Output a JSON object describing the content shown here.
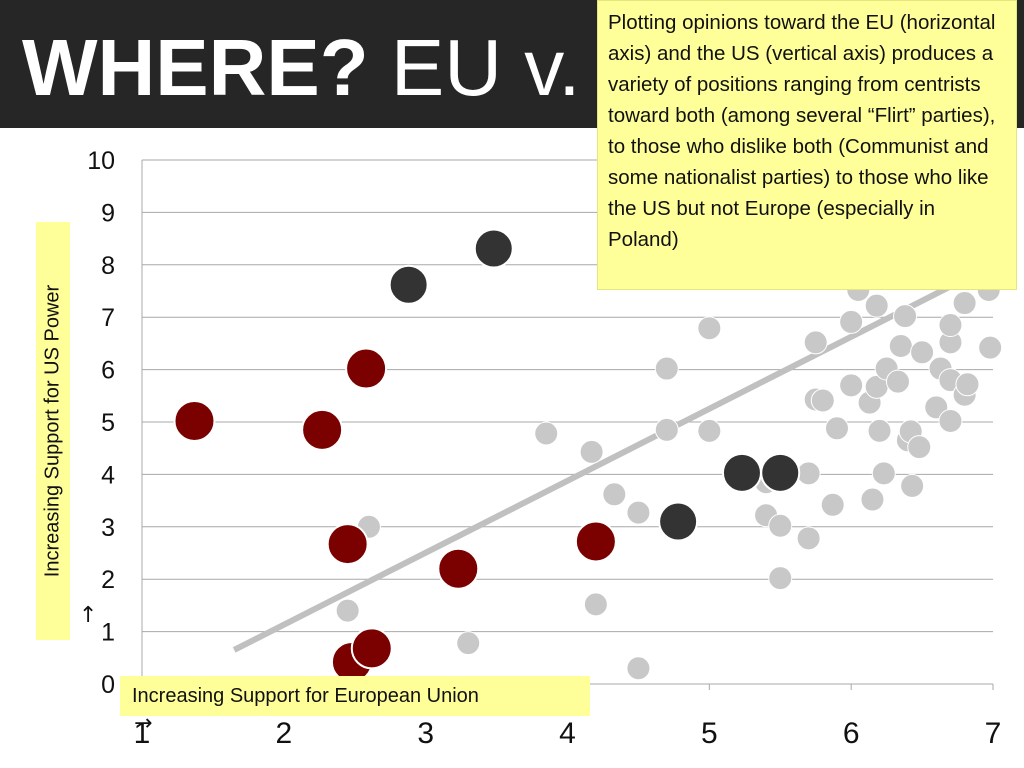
{
  "title": {
    "bold": "WHERE?",
    "light": "EU v."
  },
  "callout": "Plotting opinions toward the EU (horizontal axis) and the US (vertical axis) produces a variety of positions ranging from centrists toward both (among several “Flirt” parties), to those who dislike both (Communist and some nationalist parties) to those who like the US but not Europe (especially in Poland)",
  "colors": {
    "title_bar": "#262626",
    "callout_bg": "#ffff99",
    "highlight": "#7b0000",
    "dark": "#333333",
    "other": "#c8c8c8",
    "trend": "#c0c0c0"
  },
  "chart_data": {
    "type": "scatter",
    "xlabel": "Increasing Support for European Union",
    "ylabel": "Increasing Support for US Power",
    "xlim": [
      1,
      7
    ],
    "ylim": [
      0,
      10
    ],
    "x_ticks": [
      "1",
      "2",
      "3",
      "4",
      "5",
      "6",
      "7"
    ],
    "y_ticks": [
      "0",
      "1",
      "2",
      "3",
      "4",
      "5",
      "6",
      "7",
      "8",
      "9",
      "10"
    ],
    "grid": true,
    "trendline": {
      "x": [
        1.65,
        7.0
      ],
      "y": [
        0.65,
        8.0
      ]
    },
    "series": [
      {
        "group": "other",
        "points": [
          [
            2.45,
            1.4
          ],
          [
            2.6,
            3.0
          ],
          [
            3.3,
            0.78
          ],
          [
            3.85,
            4.78
          ],
          [
            4.17,
            4.43
          ],
          [
            4.2,
            1.52
          ],
          [
            4.33,
            3.62
          ],
          [
            4.5,
            3.27
          ],
          [
            4.5,
            0.3
          ],
          [
            4.7,
            4.85
          ],
          [
            4.7,
            6.02
          ],
          [
            5.0,
            4.83
          ],
          [
            5.0,
            6.79
          ],
          [
            5.4,
            3.85
          ],
          [
            5.4,
            3.22
          ],
          [
            5.5,
            3.02
          ],
          [
            5.5,
            2.02
          ],
          [
            5.7,
            4.02
          ],
          [
            5.7,
            2.78
          ],
          [
            5.75,
            5.43
          ],
          [
            5.75,
            6.52
          ],
          [
            5.8,
            5.41
          ],
          [
            5.87,
            3.42
          ],
          [
            5.9,
            4.88
          ],
          [
            6.0,
            5.7
          ],
          [
            6.0,
            6.91
          ],
          [
            6.05,
            7.52
          ],
          [
            6.13,
            5.37
          ],
          [
            6.15,
            3.52
          ],
          [
            6.18,
            5.67
          ],
          [
            6.18,
            7.22
          ],
          [
            6.2,
            4.83
          ],
          [
            6.23,
            4.02
          ],
          [
            6.25,
            6.02
          ],
          [
            6.33,
            5.77
          ],
          [
            6.35,
            6.45
          ],
          [
            6.38,
            7.02
          ],
          [
            6.4,
            4.65
          ],
          [
            6.42,
            4.82
          ],
          [
            6.43,
            3.78
          ],
          [
            6.48,
            4.52
          ],
          [
            6.5,
            6.33
          ],
          [
            6.6,
            5.28
          ],
          [
            6.63,
            6.02
          ],
          [
            6.7,
            5.02
          ],
          [
            6.7,
            5.8
          ],
          [
            6.7,
            6.52
          ],
          [
            6.7,
            6.85
          ],
          [
            6.8,
            7.27
          ],
          [
            6.8,
            5.52
          ],
          [
            6.82,
            5.72
          ],
          [
            6.97,
            7.52
          ],
          [
            6.98,
            6.42
          ]
        ]
      },
      {
        "group": "dark",
        "points": [
          [
            2.88,
            7.62
          ],
          [
            3.48,
            8.31
          ],
          [
            4.78,
            3.1
          ],
          [
            5.23,
            4.03
          ],
          [
            5.5,
            4.03
          ]
        ]
      },
      {
        "group": "highlight",
        "points": [
          [
            1.37,
            5.02
          ],
          [
            2.27,
            4.85
          ],
          [
            2.58,
            6.02
          ],
          [
            2.45,
            2.67
          ],
          [
            3.23,
            2.2
          ],
          [
            4.2,
            2.72
          ],
          [
            2.48,
            0.42
          ],
          [
            2.62,
            0.68
          ]
        ]
      }
    ]
  }
}
